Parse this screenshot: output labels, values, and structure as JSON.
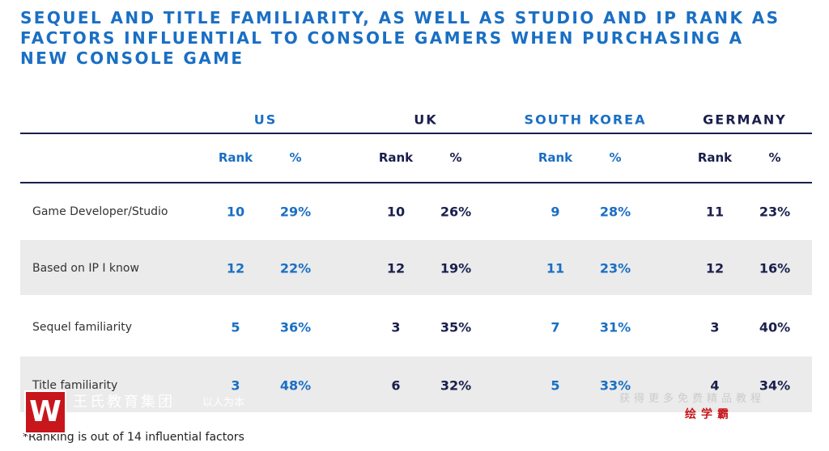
{
  "title": "Sequel and title familiarity, as well as studio and IP rank as factors influential to console gamers when purchasing a new console game",
  "table": {
    "countries": [
      "US",
      "UK",
      "SOUTH KOREA",
      "GERMANY"
    ],
    "subheaders": [
      "Rank",
      "%"
    ],
    "rows": [
      [
        "Game Developer/Studio",
        "10",
        "29%",
        "10",
        "26%",
        "9",
        "28%",
        "11",
        "23%"
      ],
      [
        "Based on IP I know",
        "12",
        "22%",
        "12",
        "19%",
        "11",
        "23%",
        "12",
        "16%"
      ],
      [
        "Sequel familiarity",
        "5",
        "36%",
        "3",
        "35%",
        "7",
        "31%",
        "3",
        "40%"
      ],
      [
        "Title familiarity",
        "3",
        "48%",
        "6",
        "32%",
        "5",
        "33%",
        "4",
        "34%"
      ]
    ]
  },
  "footnote": "*Ranking is out of 14 influential factors",
  "watermarks": [
    "王氏教育集团",
    "以人为本",
    "获得更多免费精品教程",
    "绘学霸"
  ]
}
